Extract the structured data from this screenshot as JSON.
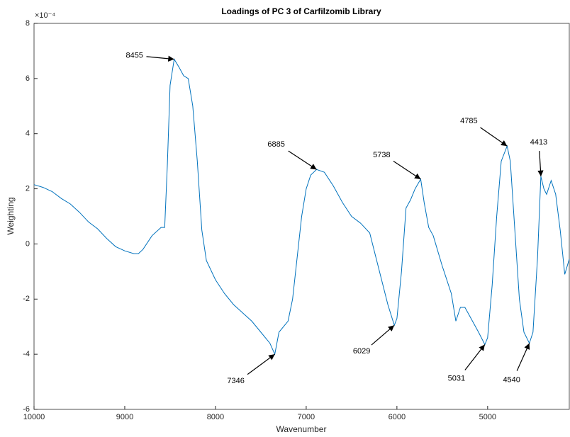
{
  "chart_data": {
    "type": "line",
    "title": "Loadings of PC 3 of Carfilzomib Library",
    "xlabel": "Wavenumber",
    "ylabel": "Weighting",
    "y_exponent_label": "×10⁻⁴",
    "color": "#0072bd",
    "x": [
      10000,
      9900,
      9800,
      9700,
      9600,
      9500,
      9400,
      9300,
      9200,
      9100,
      9000,
      8900,
      8850,
      8800,
      8700,
      8600,
      8560,
      8530,
      8500,
      8455,
      8400,
      8350,
      8300,
      8250,
      8200,
      8150,
      8100,
      8000,
      7900,
      7800,
      7700,
      7600,
      7500,
      7400,
      7346,
      7300,
      7250,
      7200,
      7150,
      7100,
      7050,
      7000,
      6950,
      6885,
      6800,
      6700,
      6600,
      6500,
      6400,
      6300,
      6200,
      6100,
      6029,
      6000,
      5950,
      5900,
      5850,
      5800,
      5738,
      5700,
      5650,
      5600,
      5500,
      5400,
      5350,
      5300,
      5250,
      5200,
      5100,
      5031,
      5000,
      4950,
      4900,
      4850,
      4785,
      4750,
      4700,
      4650,
      4600,
      4540,
      4500,
      4450,
      4413,
      4380,
      4350,
      4300,
      4250,
      4200,
      4150,
      4100
    ],
    "values": [
      2.15,
      2.05,
      1.9,
      1.65,
      1.45,
      1.15,
      0.8,
      0.55,
      0.2,
      -0.1,
      -0.25,
      -0.35,
      -0.35,
      -0.2,
      0.3,
      0.6,
      0.6,
      2.9,
      5.75,
      6.7,
      6.4,
      6.1,
      6.0,
      5.0,
      3.0,
      0.5,
      -0.6,
      -1.3,
      -1.8,
      -2.2,
      -2.5,
      -2.8,
      -3.2,
      -3.6,
      -4.0,
      -3.2,
      -3.0,
      -2.8,
      -2.0,
      -0.5,
      1.0,
      2.0,
      2.5,
      2.7,
      2.6,
      2.1,
      1.5,
      1.0,
      0.75,
      0.4,
      -0.9,
      -2.2,
      -2.95,
      -2.7,
      -1.0,
      1.3,
      1.6,
      2.0,
      2.35,
      1.5,
      0.6,
      0.3,
      -0.8,
      -1.8,
      -2.8,
      -2.3,
      -2.3,
      -2.6,
      -3.2,
      -3.65,
      -3.4,
      -1.5,
      1.0,
      3.0,
      3.55,
      3.0,
      0.5,
      -2.0,
      -3.2,
      -3.6,
      -3.2,
      -0.5,
      2.45,
      2.0,
      1.8,
      2.3,
      1.8,
      0.5,
      -1.1,
      -0.55
    ],
    "xlim": [
      10000,
      4100
    ],
    "xticks": [
      10000,
      9000,
      8000,
      7000,
      6000,
      5000
    ],
    "ylim": [
      -6,
      8
    ],
    "yticks": [
      -6,
      -4,
      -2,
      0,
      2,
      4,
      6,
      8
    ],
    "annotations": [
      {
        "x": 8455,
        "y": 6.7
      },
      {
        "x": 7346,
        "y": -4.0
      },
      {
        "x": 6885,
        "y": 2.7
      },
      {
        "x": 6029,
        "y": -2.95
      },
      {
        "x": 5738,
        "y": 2.35
      },
      {
        "x": 5031,
        "y": -3.65
      },
      {
        "x": 4785,
        "y": 3.55
      },
      {
        "x": 4540,
        "y": -3.6
      },
      {
        "x": 4413,
        "y": 2.45
      }
    ]
  }
}
